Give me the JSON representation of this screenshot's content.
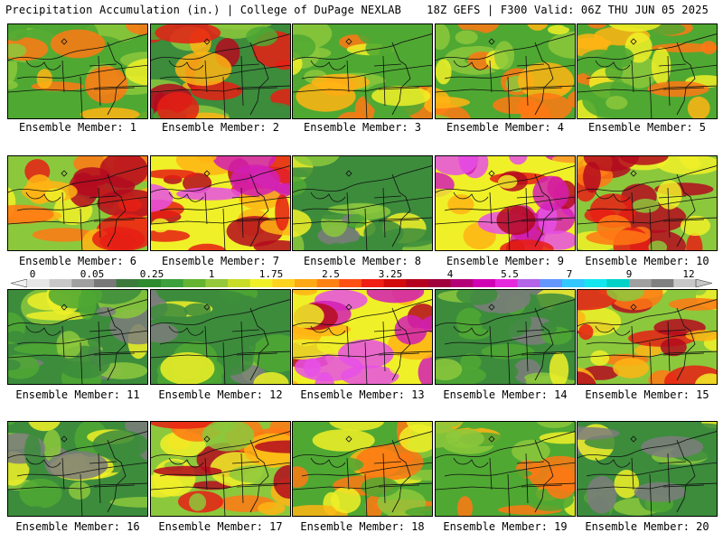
{
  "header": {
    "left": "Precipitation Accumulation (in.) | College of DuPage NEXLAB",
    "right": "18Z GEFS | F300 Valid: 06Z THU JUN 05 2025"
  },
  "members": [
    {
      "label": "Ensemble Member: 1",
      "level": "moderate"
    },
    {
      "label": "Ensemble Member: 2",
      "level": "heavy-south"
    },
    {
      "label": "Ensemble Member: 3",
      "level": "moderate"
    },
    {
      "label": "Ensemble Member: 4",
      "level": "moderate"
    },
    {
      "label": "Ensemble Member: 5",
      "level": "moderate"
    },
    {
      "label": "Ensemble Member: 6",
      "level": "heavy"
    },
    {
      "label": "Ensemble Member: 7",
      "level": "very-heavy"
    },
    {
      "label": "Ensemble Member: 8",
      "level": "light"
    },
    {
      "label": "Ensemble Member: 9",
      "level": "very-heavy"
    },
    {
      "label": "Ensemble Member: 10",
      "level": "heavy"
    },
    {
      "label": "Ensemble Member: 11",
      "level": "light"
    },
    {
      "label": "Ensemble Member: 12",
      "level": "light"
    },
    {
      "label": "Ensemble Member: 13",
      "level": "very-heavy"
    },
    {
      "label": "Ensemble Member: 14",
      "level": "light"
    },
    {
      "label": "Ensemble Member: 15",
      "level": "heavy"
    },
    {
      "label": "Ensemble Member: 16",
      "level": "light"
    },
    {
      "label": "Ensemble Member: 17",
      "level": "heavy"
    },
    {
      "label": "Ensemble Member: 18",
      "level": "moderate"
    },
    {
      "label": "Ensemble Member: 19",
      "level": "moderate"
    },
    {
      "label": "Ensemble Member: 20",
      "level": "light"
    }
  ],
  "colorbar": {
    "labels": [
      "0",
      "0.05",
      "0.25",
      "1",
      "1.75",
      "2.5",
      "3.25",
      "4",
      "5.5",
      "7",
      "9",
      "12"
    ],
    "colors": [
      "#e6e6e6",
      "#c8c8c8",
      "#a0a0a0",
      "#787878",
      "#3c7a3c",
      "#2e8b2e",
      "#3ca03c",
      "#64b432",
      "#96c83c",
      "#c8dc28",
      "#f0f028",
      "#ffd21e",
      "#ffaa14",
      "#ff8214",
      "#ff5014",
      "#f01e14",
      "#d20a0a",
      "#b4001e",
      "#a0003c",
      "#b40078",
      "#d200b4",
      "#e628dc",
      "#b464e6",
      "#6496ff",
      "#32c8ff",
      "#14e6f0",
      "#00d2c8",
      "#a0a0a0",
      "#808080",
      "#c8c8c8"
    ]
  },
  "palette": {
    "gray": "#7d7d7d",
    "dkgreen": "#3c8c3c",
    "green": "#4fa832",
    "ltgreen": "#8cc83c",
    "yellow": "#f0f028",
    "orange": "#ffb414",
    "dkorange": "#ff7814",
    "red": "#e61e14",
    "dkred": "#b40a1e",
    "magenta": "#d21eb4",
    "pink": "#e650e6",
    "cyan": "#28d2f0"
  }
}
